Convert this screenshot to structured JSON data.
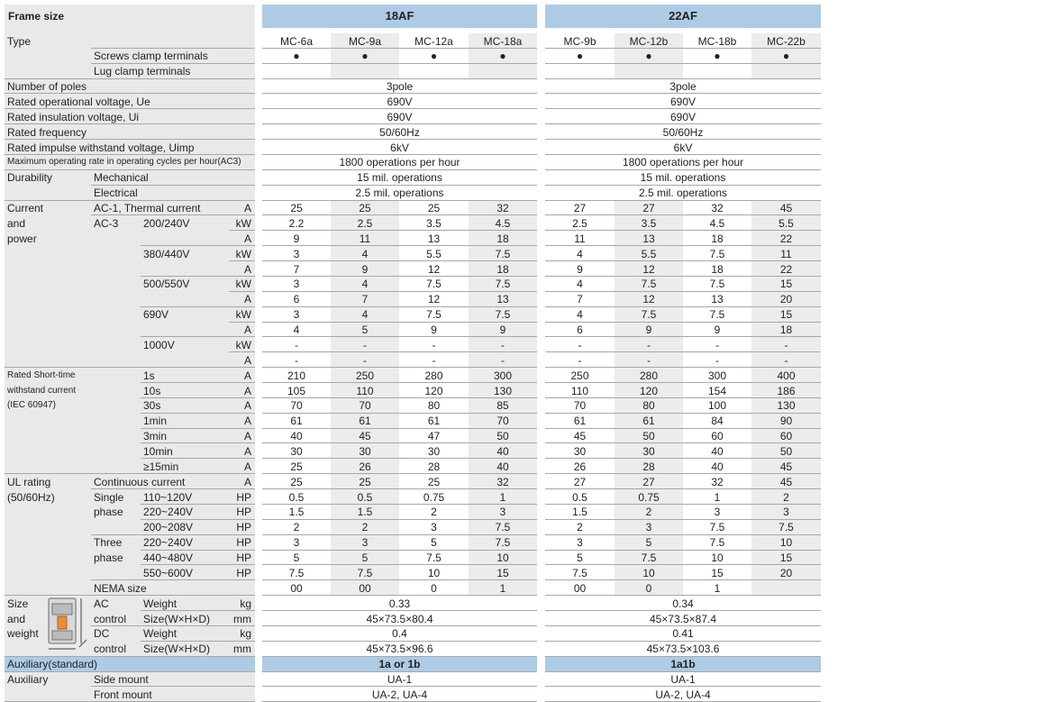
{
  "frame": {
    "label": "Frame size",
    "a": "18AF",
    "b": "22AF"
  },
  "rows": [
    {
      "c1": "Type",
      "a": [
        "MC-6a",
        "MC-9a",
        "MC-12a",
        "MC-18a"
      ],
      "b": [
        "MC-9b",
        "MC-12b",
        "MC-18b",
        "MC-22b"
      ]
    },
    {
      "c2": "Screws clamp terminals",
      "a": [
        "●",
        "●",
        "●",
        "●"
      ],
      "b": [
        "●",
        "●",
        "●",
        "●"
      ]
    },
    {
      "c2": "Lug clamp terminals"
    },
    {
      "c1": "Number of poles",
      "a": "3pole",
      "b": "3pole"
    },
    {
      "c1": "Rated operational voltage, Ue",
      "a": "690V",
      "b": "690V"
    },
    {
      "c1": "Rated insulation voltage, Ui",
      "a": "690V",
      "b": "690V"
    },
    {
      "c1": "Rated frequency",
      "a": "50/60Hz",
      "b": "50/60Hz"
    },
    {
      "c1": "Rated impulse withstand voltage, Uimp",
      "a": "6kV",
      "b": "6kV"
    },
    {
      "c1": "Maximum operating rate in operating cycles per hour(AC3)",
      "a": "1800 operations per hour",
      "b": "1800 operations per hour"
    },
    {
      "c1": "Durability",
      "c2": "Mechanical",
      "a": "15 mil. operations",
      "b": "15 mil. operations"
    },
    {
      "c2": "Electrical",
      "a": "2.5 mil. operations",
      "b": "2.5 mil. operations"
    },
    {
      "c1": "Current\nand\npower",
      "c2": "AC-1, Thermal current",
      "unit": "A",
      "a": [
        25,
        25,
        25,
        32
      ],
      "b": [
        27,
        27,
        32,
        45
      ]
    },
    {
      "c2": "AC-3",
      "c3": "200/240V",
      "unit": "kW",
      "a": [
        2.2,
        2.5,
        3.5,
        4.5
      ],
      "b": [
        2.5,
        3.5,
        4.5,
        5.5
      ]
    },
    {
      "unit": "A",
      "a": [
        9,
        11,
        13,
        18
      ],
      "b": [
        11,
        13,
        18,
        22
      ]
    },
    {
      "c3": "380/440V",
      "unit": "kW",
      "a": [
        3,
        4,
        5.5,
        7.5
      ],
      "b": [
        4,
        5.5,
        7.5,
        11
      ]
    },
    {
      "unit": "A",
      "a": [
        7,
        9,
        12,
        18
      ],
      "b": [
        9,
        12,
        18,
        22
      ]
    },
    {
      "c3": "500/550V",
      "unit": "kW",
      "a": [
        3,
        4,
        7.5,
        7.5
      ],
      "b": [
        4,
        7.5,
        7.5,
        15
      ]
    },
    {
      "unit": "A",
      "a": [
        6,
        7,
        12,
        13
      ],
      "b": [
        7,
        12,
        13,
        20
      ]
    },
    {
      "c3": "690V",
      "unit": "kW",
      "a": [
        3,
        4,
        7.5,
        7.5
      ],
      "b": [
        4,
        7.5,
        7.5,
        15
      ]
    },
    {
      "unit": "A",
      "a": [
        4,
        5,
        9,
        9
      ],
      "b": [
        6,
        9,
        9,
        18
      ]
    },
    {
      "c3": "1000V",
      "unit": "kW",
      "a": [
        "-",
        "-",
        "-",
        "-"
      ],
      "b": [
        "-",
        "-",
        "-",
        "-"
      ]
    },
    {
      "unit": "A",
      "a": [
        "-",
        "-",
        "-",
        "-"
      ],
      "b": [
        "-",
        "-",
        "-",
        "-"
      ]
    },
    {
      "c1": "Rated Short-time\nwithstand current\n(IEC 60947)",
      "c3": "1s",
      "unit": "A",
      "a": [
        210,
        250,
        280,
        300
      ],
      "b": [
        250,
        280,
        300,
        400
      ]
    },
    {
      "c3": "10s",
      "unit": "A",
      "a": [
        105,
        110,
        120,
        130
      ],
      "b": [
        110,
        120,
        154,
        186
      ]
    },
    {
      "c3": "30s",
      "unit": "A",
      "a": [
        70,
        70,
        80,
        85
      ],
      "b": [
        70,
        80,
        100,
        130
      ]
    },
    {
      "c3": "1min",
      "unit": "A",
      "a": [
        61,
        61,
        61,
        70
      ],
      "b": [
        61,
        61,
        84,
        90
      ]
    },
    {
      "c3": "3min",
      "unit": "A",
      "a": [
        40,
        45,
        47,
        50
      ],
      "b": [
        45,
        50,
        60,
        60
      ]
    },
    {
      "c3": "10min",
      "unit": "A",
      "a": [
        30,
        30,
        30,
        40
      ],
      "b": [
        30,
        30,
        40,
        50
      ]
    },
    {
      "c3": "≥15min",
      "unit": "A",
      "a": [
        25,
        26,
        28,
        40
      ],
      "b": [
        26,
        28,
        40,
        45
      ]
    },
    {
      "c1": "UL rating\n(50/60Hz)",
      "c2": "Continuous current",
      "unit": "A",
      "a": [
        25,
        25,
        25,
        32
      ],
      "b": [
        27,
        27,
        32,
        45
      ]
    },
    {
      "c2": "Single\nphase",
      "c3": "110~120V",
      "unit": "HP",
      "a": [
        0.5,
        0.5,
        0.75,
        1
      ],
      "b": [
        0.5,
        0.75,
        1,
        2
      ]
    },
    {
      "c3": "220~240V",
      "unit": "HP",
      "a": [
        1.5,
        1.5,
        2,
        3
      ],
      "b": [
        1.5,
        2,
        3,
        3
      ]
    },
    {
      "c3": "200~208V",
      "unit": "HP",
      "a": [
        2,
        2,
        3,
        7.5
      ],
      "b": [
        2,
        3,
        7.5,
        7.5
      ]
    },
    {
      "c2": "Three\nphase",
      "c3": "220~240V",
      "unit": "HP",
      "a": [
        3,
        3,
        5,
        7.5
      ],
      "b": [
        3,
        5,
        7.5,
        10
      ]
    },
    {
      "c3": "440~480V",
      "unit": "HP",
      "a": [
        5,
        5,
        7.5,
        10
      ],
      "b": [
        5,
        7.5,
        10,
        15
      ]
    },
    {
      "c3": "550~600V",
      "unit": "HP",
      "a": [
        7.5,
        7.5,
        10,
        15
      ],
      "b": [
        7.5,
        10,
        15,
        20
      ]
    },
    {
      "c2": "NEMA size",
      "a": [
        "00",
        "00",
        0,
        1
      ],
      "b": [
        "00",
        0,
        1,
        null
      ]
    },
    {
      "c1": "Size\nand\nweight",
      "c2": "AC\ncontrol",
      "c3": "Weight",
      "unit": "kg",
      "a": 0.33,
      "b": 0.34
    },
    {
      "c3": "Size(W×H×D)",
      "unit": "mm",
      "a": "45×73.5×80.4",
      "b": "45×73.5×87.4"
    },
    {
      "c2": "DC\ncontrol",
      "c3": "Weight",
      "unit": "kg",
      "a": 0.4,
      "b": 0.41
    },
    {
      "c3": "Size(W×H×D)",
      "unit": "mm",
      "a": "45×73.5×96.6",
      "b": "45×73.5×103.6"
    }
  ],
  "auxiliary": {
    "c1": "Auxiliary(standard)",
    "a": "1a or 1b",
    "b": "1a1b",
    "rows": [
      {
        "c1": "Auxiliary",
        "c2": "Side mount",
        "a": "UA-1",
        "b": "UA-1"
      },
      {
        "c2": "Front mount",
        "a": "UA-2, UA-4",
        "b": "UA-2, UA-4"
      }
    ]
  }
}
